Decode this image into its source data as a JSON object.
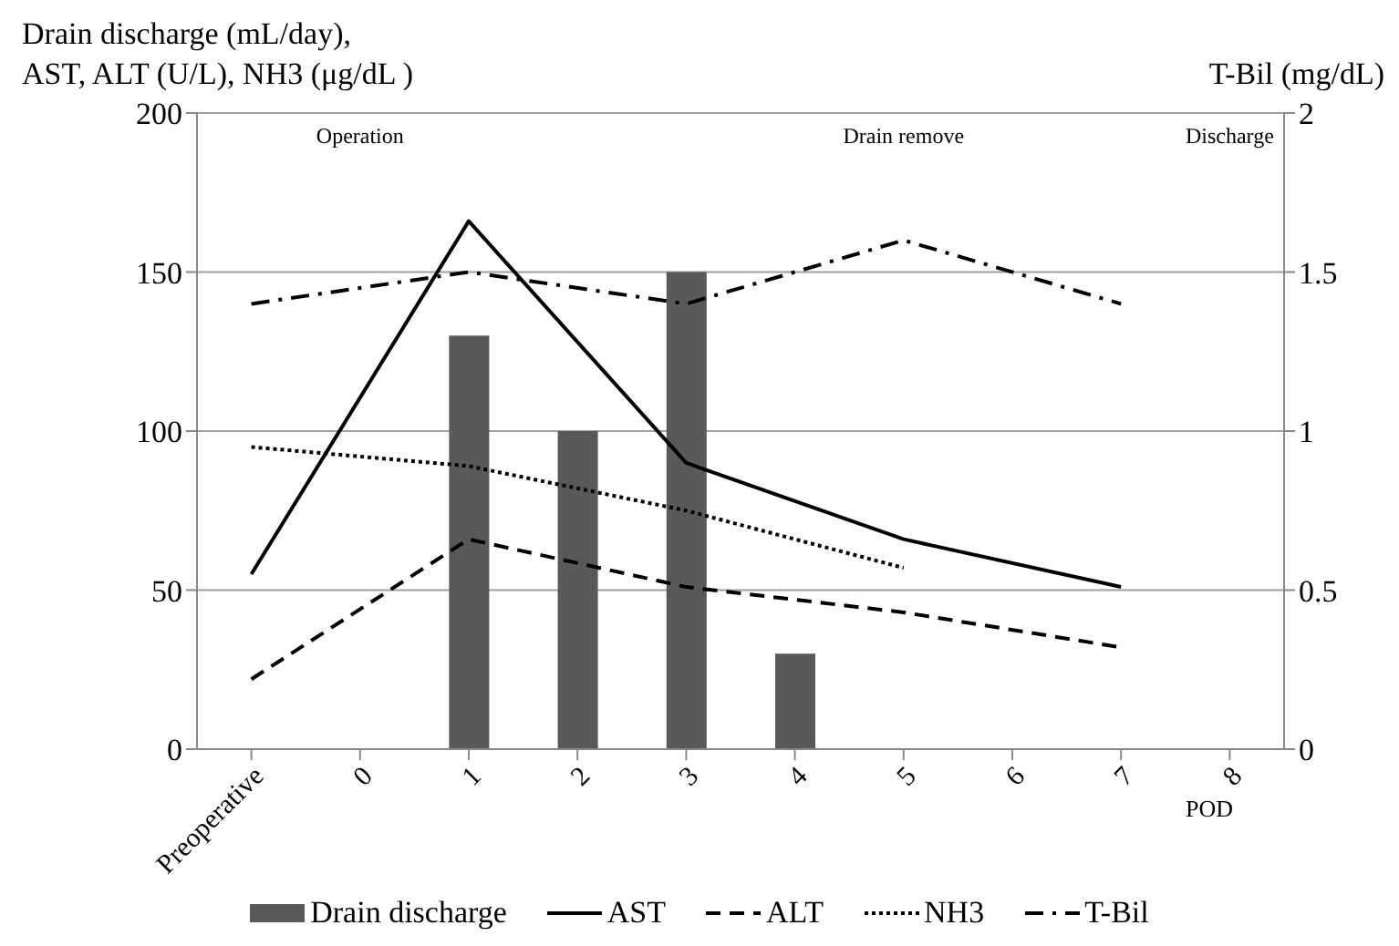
{
  "chart_data": {
    "type": "bar",
    "ylabel": "Drain discharge (mL/day),\nAST, ALT (U/L), NH3 (μg/dL )",
    "y2label": "T-Bil (mg/dL)",
    "xlabel": "POD",
    "categories": [
      "Preoperative",
      "0",
      "1",
      "2",
      "3",
      "4",
      "5",
      "6",
      "7",
      "8"
    ],
    "series": [
      {
        "name": "Drain discharge",
        "color": "#595959",
        "values": [
          null,
          null,
          130,
          100,
          150,
          30,
          null,
          null,
          null,
          null
        ]
      },
      {
        "name": "AST",
        "type": "line",
        "color": "#000000",
        "line_style": "solid",
        "values": [
          55,
          null,
          166,
          null,
          90,
          null,
          66,
          null,
          51,
          null
        ]
      },
      {
        "name": "ALT",
        "type": "line",
        "color": "#000000",
        "line_style": "dashed",
        "values": [
          22,
          null,
          66,
          null,
          51,
          null,
          43,
          null,
          32,
          null
        ]
      },
      {
        "name": "NH3",
        "type": "line",
        "color": "#000000",
        "line_style": "dotted",
        "values": [
          95,
          null,
          89,
          null,
          75,
          null,
          57,
          null,
          null,
          null
        ]
      },
      {
        "name": "T-Bil",
        "type": "line",
        "color": "#000000",
        "line_style": "dashdot",
        "axis": "y2",
        "values": [
          1.4,
          null,
          1.5,
          null,
          1.4,
          null,
          1.6,
          null,
          1.4,
          null
        ]
      }
    ],
    "ylim": [
      0,
      200
    ],
    "yticks": [
      0,
      50,
      100,
      150,
      200
    ],
    "y2lim": [
      0,
      2
    ],
    "y2ticks": [
      0,
      0.5,
      1,
      1.5,
      2
    ],
    "grid": "y",
    "legend": "bottom",
    "marker": "none",
    "annotations": [
      "Operation",
      "Drain remove",
      "Discharge"
    ]
  }
}
